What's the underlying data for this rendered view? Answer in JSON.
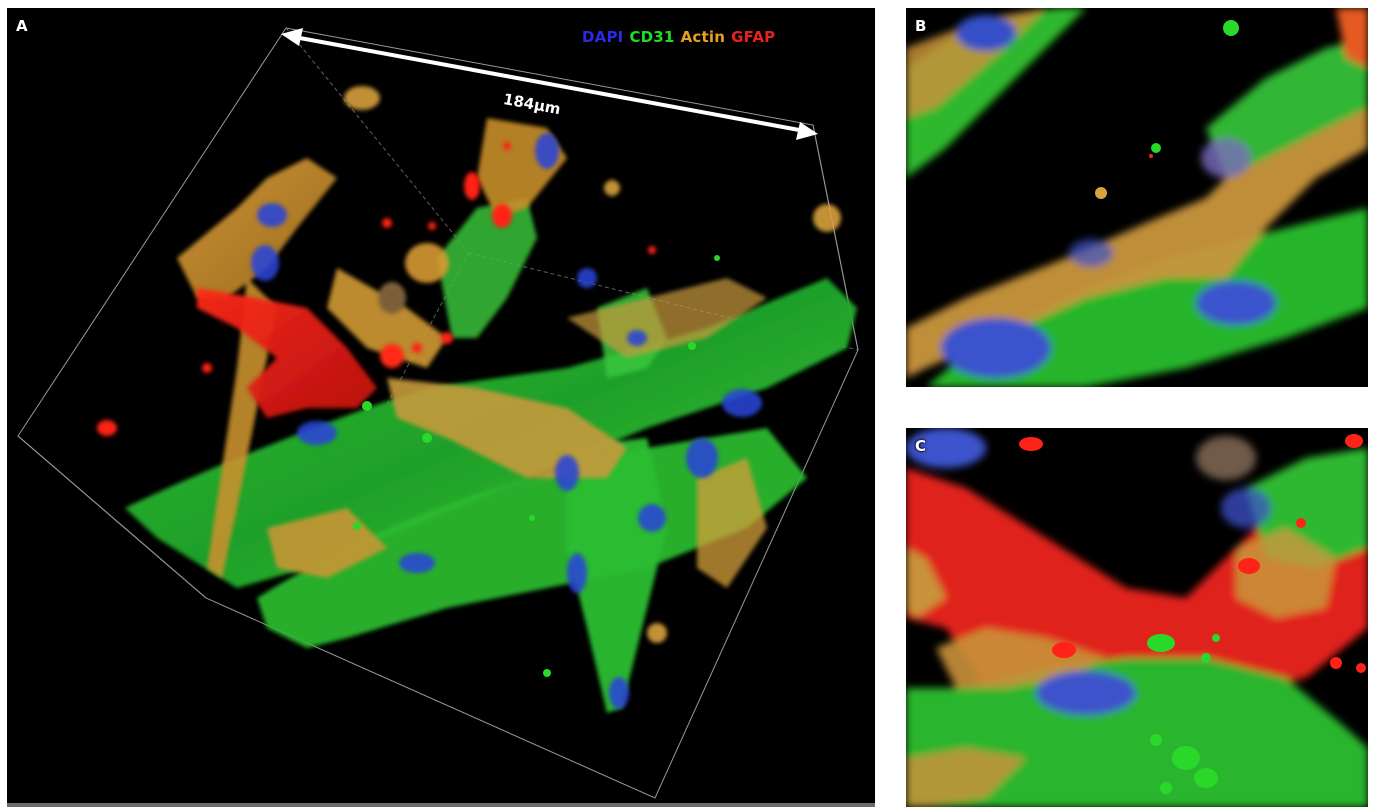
{
  "panels": {
    "a": {
      "letter": "A"
    },
    "b": {
      "letter": "B"
    },
    "c": {
      "letter": "C"
    }
  },
  "legend": {
    "items": [
      {
        "label": "DAPI",
        "color": "#2a2ae8"
      },
      {
        "label": "CD31",
        "color": "#22dd22"
      },
      {
        "label": "Actin",
        "color": "#e8a020"
      },
      {
        "label": "GFAP",
        "color": "#e82020"
      }
    ]
  },
  "scale_bar": {
    "label": "184µm"
  }
}
